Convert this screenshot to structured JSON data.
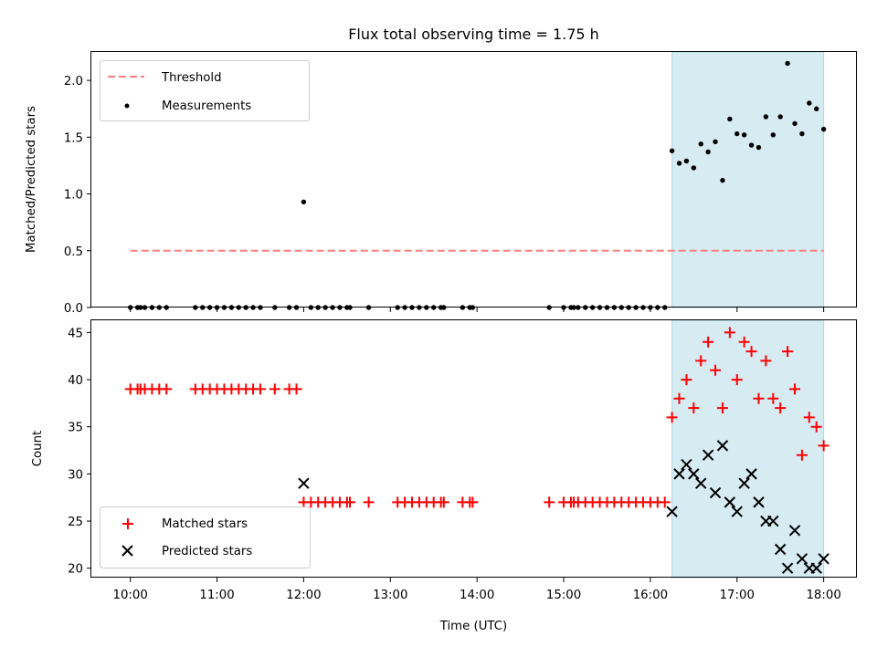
{
  "chart_data": {
    "title": "Flux total observing time = 1.75 h",
    "xlabel": "Time (UTC)",
    "x_ticks": [
      "10:00",
      "11:00",
      "12:00",
      "13:00",
      "14:00",
      "15:00",
      "16:00",
      "17:00",
      "18:00"
    ],
    "shaded_span": {
      "start": "16:15",
      "end": "18:00",
      "color": "#add8e6"
    },
    "panels": [
      {
        "type": "scatter",
        "ylabel": "Matched/Predicted stars",
        "ylim": [
          0,
          2.25
        ],
        "y_ticks": [
          "0.0",
          "0.5",
          "1.0",
          "1.5",
          "2.0"
        ],
        "legend": {
          "position": "upper-left",
          "entries": [
            "Threshold",
            "Measurements"
          ]
        },
        "threshold": {
          "name": "Threshold",
          "y": 0.5,
          "x_start": "10:00",
          "x_end": "18:00",
          "color": "#ff7f7f",
          "style": "dashed"
        },
        "series": [
          {
            "name": "Measurements",
            "marker": "dot",
            "color": "#000000",
            "points": [
              [
                "10:00",
                0
              ],
              [
                "10:05",
                0
              ],
              [
                "10:07",
                0
              ],
              [
                "10:10",
                0
              ],
              [
                "10:15",
                0
              ],
              [
                "10:20",
                0
              ],
              [
                "10:25",
                0
              ],
              [
                "10:45",
                0
              ],
              [
                "10:50",
                0
              ],
              [
                "10:55",
                0
              ],
              [
                "11:00",
                0
              ],
              [
                "11:05",
                0
              ],
              [
                "11:10",
                0
              ],
              [
                "11:15",
                0
              ],
              [
                "11:20",
                0
              ],
              [
                "11:25",
                0
              ],
              [
                "11:30",
                0
              ],
              [
                "11:40",
                0
              ],
              [
                "11:50",
                0
              ],
              [
                "11:55",
                0
              ],
              [
                "12:00",
                0.93
              ],
              [
                "12:05",
                0
              ],
              [
                "12:10",
                0
              ],
              [
                "12:15",
                0
              ],
              [
                "12:20",
                0
              ],
              [
                "12:25",
                0
              ],
              [
                "12:30",
                0
              ],
              [
                "12:32",
                0
              ],
              [
                "12:45",
                0
              ],
              [
                "13:05",
                0
              ],
              [
                "13:10",
                0
              ],
              [
                "13:15",
                0
              ],
              [
                "13:20",
                0
              ],
              [
                "13:25",
                0
              ],
              [
                "13:30",
                0
              ],
              [
                "13:35",
                0
              ],
              [
                "13:37",
                0
              ],
              [
                "13:50",
                0
              ],
              [
                "13:55",
                0
              ],
              [
                "13:57",
                0
              ],
              [
                "14:50",
                0
              ],
              [
                "15:00",
                0
              ],
              [
                "15:05",
                0
              ],
              [
                "15:07",
                0
              ],
              [
                "15:10",
                0
              ],
              [
                "15:15",
                0
              ],
              [
                "15:20",
                0
              ],
              [
                "15:25",
                0
              ],
              [
                "15:30",
                0
              ],
              [
                "15:35",
                0
              ],
              [
                "15:40",
                0
              ],
              [
                "15:45",
                0
              ],
              [
                "15:50",
                0
              ],
              [
                "15:55",
                0
              ],
              [
                "16:00",
                0
              ],
              [
                "16:05",
                0
              ],
              [
                "16:10",
                0
              ],
              [
                "16:15",
                1.38
              ],
              [
                "16:20",
                1.27
              ],
              [
                "16:25",
                1.29
              ],
              [
                "16:30",
                1.23
              ],
              [
                "16:35",
                1.44
              ],
              [
                "16:40",
                1.37
              ],
              [
                "16:45",
                1.46
              ],
              [
                "16:50",
                1.12
              ],
              [
                "16:55",
                1.66
              ],
              [
                "17:00",
                1.53
              ],
              [
                "17:05",
                1.52
              ],
              [
                "17:10",
                1.43
              ],
              [
                "17:15",
                1.41
              ],
              [
                "17:20",
                1.68
              ],
              [
                "17:25",
                1.52
              ],
              [
                "17:30",
                1.68
              ],
              [
                "17:35",
                2.15
              ],
              [
                "17:40",
                1.62
              ],
              [
                "17:45",
                1.53
              ],
              [
                "17:50",
                1.8
              ],
              [
                "17:55",
                1.75
              ],
              [
                "18:00",
                1.57
              ]
            ]
          }
        ]
      },
      {
        "type": "scatter",
        "ylabel": "Count",
        "ylim": [
          19,
          46.3
        ],
        "y_ticks": [
          "20",
          "25",
          "30",
          "35",
          "40",
          "45"
        ],
        "legend": {
          "position": "lower-left",
          "entries": [
            "Matched stars",
            "Predicted stars"
          ]
        },
        "series": [
          {
            "name": "Matched stars",
            "marker": "plus",
            "color": "#ff0000",
            "points": [
              [
                "10:00",
                39
              ],
              [
                "10:05",
                39
              ],
              [
                "10:07",
                39
              ],
              [
                "10:10",
                39
              ],
              [
                "10:15",
                39
              ],
              [
                "10:20",
                39
              ],
              [
                "10:25",
                39
              ],
              [
                "10:45",
                39
              ],
              [
                "10:50",
                39
              ],
              [
                "10:55",
                39
              ],
              [
                "11:00",
                39
              ],
              [
                "11:05",
                39
              ],
              [
                "11:10",
                39
              ],
              [
                "11:15",
                39
              ],
              [
                "11:20",
                39
              ],
              [
                "11:25",
                39
              ],
              [
                "11:30",
                39
              ],
              [
                "11:40",
                39
              ],
              [
                "11:50",
                39
              ],
              [
                "11:55",
                39
              ],
              [
                "12:00",
                27
              ],
              [
                "12:05",
                27
              ],
              [
                "12:10",
                27
              ],
              [
                "12:15",
                27
              ],
              [
                "12:20",
                27
              ],
              [
                "12:25",
                27
              ],
              [
                "12:30",
                27
              ],
              [
                "12:32",
                27
              ],
              [
                "12:45",
                27
              ],
              [
                "13:05",
                27
              ],
              [
                "13:10",
                27
              ],
              [
                "13:15",
                27
              ],
              [
                "13:20",
                27
              ],
              [
                "13:25",
                27
              ],
              [
                "13:30",
                27
              ],
              [
                "13:35",
                27
              ],
              [
                "13:37",
                27
              ],
              [
                "13:50",
                27
              ],
              [
                "13:55",
                27
              ],
              [
                "13:57",
                27
              ],
              [
                "14:50",
                27
              ],
              [
                "15:00",
                27
              ],
              [
                "15:05",
                27
              ],
              [
                "15:07",
                27
              ],
              [
                "15:10",
                27
              ],
              [
                "15:15",
                27
              ],
              [
                "15:20",
                27
              ],
              [
                "15:25",
                27
              ],
              [
                "15:30",
                27
              ],
              [
                "15:35",
                27
              ],
              [
                "15:40",
                27
              ],
              [
                "15:45",
                27
              ],
              [
                "15:50",
                27
              ],
              [
                "15:55",
                27
              ],
              [
                "16:00",
                27
              ],
              [
                "16:05",
                27
              ],
              [
                "16:10",
                27
              ],
              [
                "16:15",
                36
              ],
              [
                "16:20",
                38
              ],
              [
                "16:25",
                40
              ],
              [
                "16:30",
                37
              ],
              [
                "16:35",
                42
              ],
              [
                "16:40",
                44
              ],
              [
                "16:45",
                41
              ],
              [
                "16:50",
                37
              ],
              [
                "16:55",
                45
              ],
              [
                "17:00",
                40
              ],
              [
                "17:05",
                44
              ],
              [
                "17:10",
                43
              ],
              [
                "17:15",
                38
              ],
              [
                "17:20",
                42
              ],
              [
                "17:25",
                38
              ],
              [
                "17:30",
                37
              ],
              [
                "17:35",
                43
              ],
              [
                "17:40",
                39
              ],
              [
                "17:45",
                32
              ],
              [
                "17:50",
                36
              ],
              [
                "17:55",
                35
              ],
              [
                "18:00",
                33
              ]
            ]
          },
          {
            "name": "Predicted stars",
            "marker": "x",
            "color": "#000000",
            "points": [
              [
                "12:00",
                29
              ],
              [
                "16:15",
                26
              ],
              [
                "16:20",
                30
              ],
              [
                "16:25",
                31
              ],
              [
                "16:30",
                30
              ],
              [
                "16:35",
                29
              ],
              [
                "16:40",
                32
              ],
              [
                "16:45",
                28
              ],
              [
                "16:50",
                33
              ],
              [
                "16:55",
                27
              ],
              [
                "17:00",
                26
              ],
              [
                "17:05",
                29
              ],
              [
                "17:10",
                30
              ],
              [
                "17:15",
                27
              ],
              [
                "17:20",
                25
              ],
              [
                "17:25",
                25
              ],
              [
                "17:30",
                22
              ],
              [
                "17:35",
                20
              ],
              [
                "17:40",
                24
              ],
              [
                "17:45",
                21
              ],
              [
                "17:50",
                20
              ],
              [
                "17:55",
                20
              ],
              [
                "18:00",
                21
              ]
            ]
          }
        ]
      }
    ]
  }
}
